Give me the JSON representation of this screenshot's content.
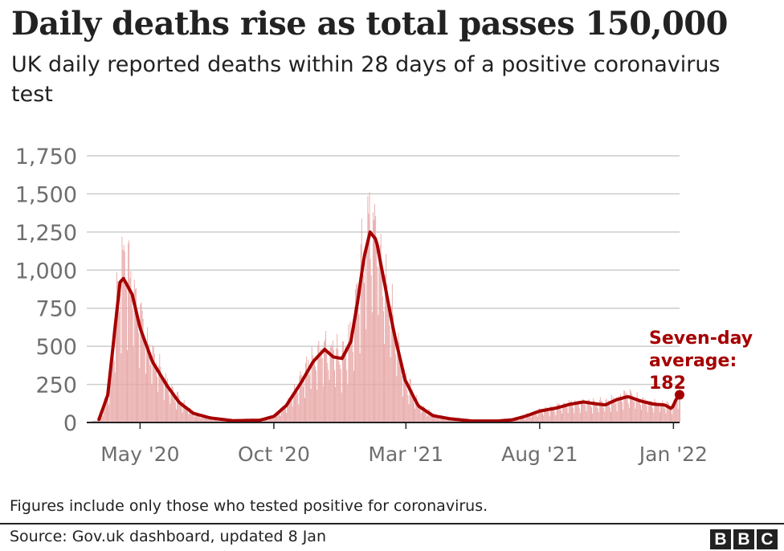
{
  "header": {
    "title": "Daily deaths rise as total passes 150,000",
    "subtitle": "UK daily reported deaths within 28 days of a positive coronavirus test"
  },
  "footer": {
    "note": "Figures include only those who tested positive for coronavirus.",
    "source": "Source: Gov.uk dashboard, updated 8 Jan",
    "logo_letters": [
      "B",
      "B",
      "C"
    ]
  },
  "colors": {
    "bars": "#e8a7a7",
    "line": "#a50000",
    "annotation": "#a50000",
    "grid": "#cccccc",
    "axis": "#222222",
    "tick_label": "#6e6e6e"
  },
  "chart_data": {
    "type": "bar",
    "overlay_line": "Seven-day average",
    "x_start": "2020-03-01",
    "x_end": "2022-01-08",
    "ylim": [
      0,
      1750
    ],
    "yticks": [
      0,
      250,
      500,
      750,
      1000,
      1250,
      1500,
      1750
    ],
    "ytick_labels": [
      "0",
      "250",
      "500",
      "750",
      "1,000",
      "1,250",
      "1,500",
      "1,750"
    ],
    "xticks": [
      {
        "date": "2020-05-01",
        "label": "May '20"
      },
      {
        "date": "2020-10-01",
        "label": "Oct '20"
      },
      {
        "date": "2021-03-01",
        "label": "Mar '21"
      },
      {
        "date": "2021-08-01",
        "label": "Aug '21"
      },
      {
        "date": "2022-01-01",
        "label": "Jan '22"
      }
    ],
    "grid": true,
    "seven_day_average": [
      {
        "date": "2020-03-01",
        "value": 0
      },
      {
        "date": "2020-03-15",
        "value": 20
      },
      {
        "date": "2020-03-25",
        "value": 180
      },
      {
        "date": "2020-04-01",
        "value": 550
      },
      {
        "date": "2020-04-08",
        "value": 920
      },
      {
        "date": "2020-04-12",
        "value": 945
      },
      {
        "date": "2020-04-22",
        "value": 840
      },
      {
        "date": "2020-05-01",
        "value": 620
      },
      {
        "date": "2020-05-15",
        "value": 400
      },
      {
        "date": "2020-06-01",
        "value": 240
      },
      {
        "date": "2020-06-15",
        "value": 130
      },
      {
        "date": "2020-07-01",
        "value": 60
      },
      {
        "date": "2020-07-20",
        "value": 30
      },
      {
        "date": "2020-08-15",
        "value": 12
      },
      {
        "date": "2020-09-15",
        "value": 15
      },
      {
        "date": "2020-10-01",
        "value": 40
      },
      {
        "date": "2020-10-15",
        "value": 110
      },
      {
        "date": "2020-11-01",
        "value": 260
      },
      {
        "date": "2020-11-15",
        "value": 400
      },
      {
        "date": "2020-11-28",
        "value": 480
      },
      {
        "date": "2020-12-08",
        "value": 430
      },
      {
        "date": "2020-12-18",
        "value": 420
      },
      {
        "date": "2020-12-28",
        "value": 530
      },
      {
        "date": "2021-01-05",
        "value": 800
      },
      {
        "date": "2021-01-12",
        "value": 1080
      },
      {
        "date": "2021-01-19",
        "value": 1250
      },
      {
        "date": "2021-01-26",
        "value": 1200
      },
      {
        "date": "2021-02-05",
        "value": 900
      },
      {
        "date": "2021-02-15",
        "value": 600
      },
      {
        "date": "2021-02-28",
        "value": 280
      },
      {
        "date": "2021-03-15",
        "value": 110
      },
      {
        "date": "2021-04-01",
        "value": 45
      },
      {
        "date": "2021-04-20",
        "value": 25
      },
      {
        "date": "2021-05-15",
        "value": 10
      },
      {
        "date": "2021-06-15",
        "value": 10
      },
      {
        "date": "2021-07-01",
        "value": 18
      },
      {
        "date": "2021-07-15",
        "value": 40
      },
      {
        "date": "2021-08-01",
        "value": 75
      },
      {
        "date": "2021-08-20",
        "value": 95
      },
      {
        "date": "2021-09-05",
        "value": 120
      },
      {
        "date": "2021-09-20",
        "value": 135
      },
      {
        "date": "2021-10-01",
        "value": 125
      },
      {
        "date": "2021-10-15",
        "value": 115
      },
      {
        "date": "2021-10-28",
        "value": 150
      },
      {
        "date": "2021-11-10",
        "value": 170
      },
      {
        "date": "2021-11-25",
        "value": 140
      },
      {
        "date": "2021-12-10",
        "value": 120
      },
      {
        "date": "2021-12-22",
        "value": 115
      },
      {
        "date": "2021-12-30",
        "value": 90
      },
      {
        "date": "2022-01-04",
        "value": 150
      },
      {
        "date": "2022-01-08",
        "value": 182
      }
    ],
    "annotation": {
      "date": "2022-01-08",
      "value": 182,
      "lines": [
        "Seven-day",
        "average:",
        "182"
      ]
    }
  }
}
